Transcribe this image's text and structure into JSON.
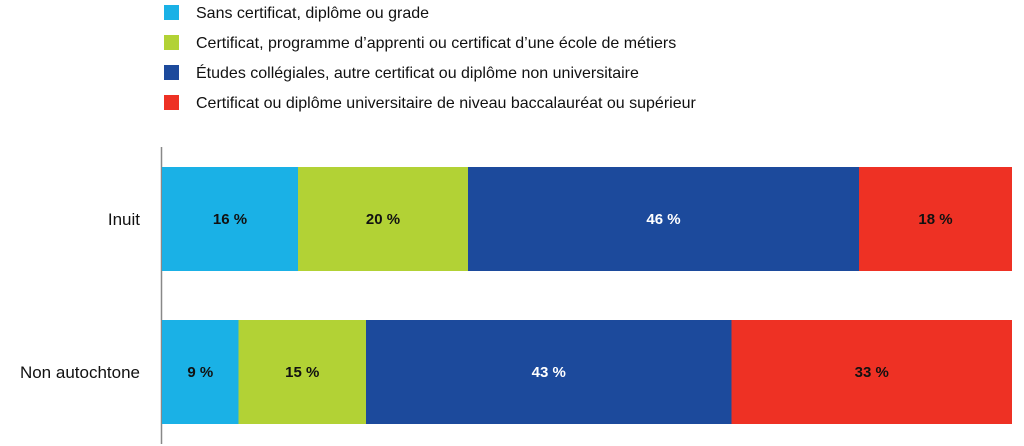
{
  "chart_data": {
    "type": "bar",
    "orientation": "horizontal",
    "stacked": true,
    "normalized": true,
    "categories": [
      "Inuit",
      "Non autochtone"
    ],
    "series": [
      {
        "name": "Sans certificat, diplôme ou grade",
        "values": [
          16,
          9
        ],
        "color": "#1ab1e6",
        "labels": [
          "16 %",
          "9 %"
        ]
      },
      {
        "name": "Certificat, programme d’apprenti ou certificat d’une école de métiers",
        "values": [
          20,
          15
        ],
        "color": "#b2d235",
        "labels": [
          "20 %",
          "15 %"
        ]
      },
      {
        "name": "Études collégiales, autre certificat ou diplôme non universitaire",
        "values": [
          46,
          43
        ],
        "color": "#1c4a9c",
        "labels": [
          "46 %",
          "43 %"
        ]
      },
      {
        "name": "Certificat ou diplôme universitaire de niveau baccalauréat ou supérieur",
        "values": [
          18,
          33
        ],
        "color": "#ee3124",
        "labels": [
          "18 %",
          "33 %"
        ]
      }
    ],
    "xlim": [
      0,
      100
    ],
    "legend": "top",
    "grid": false
  }
}
